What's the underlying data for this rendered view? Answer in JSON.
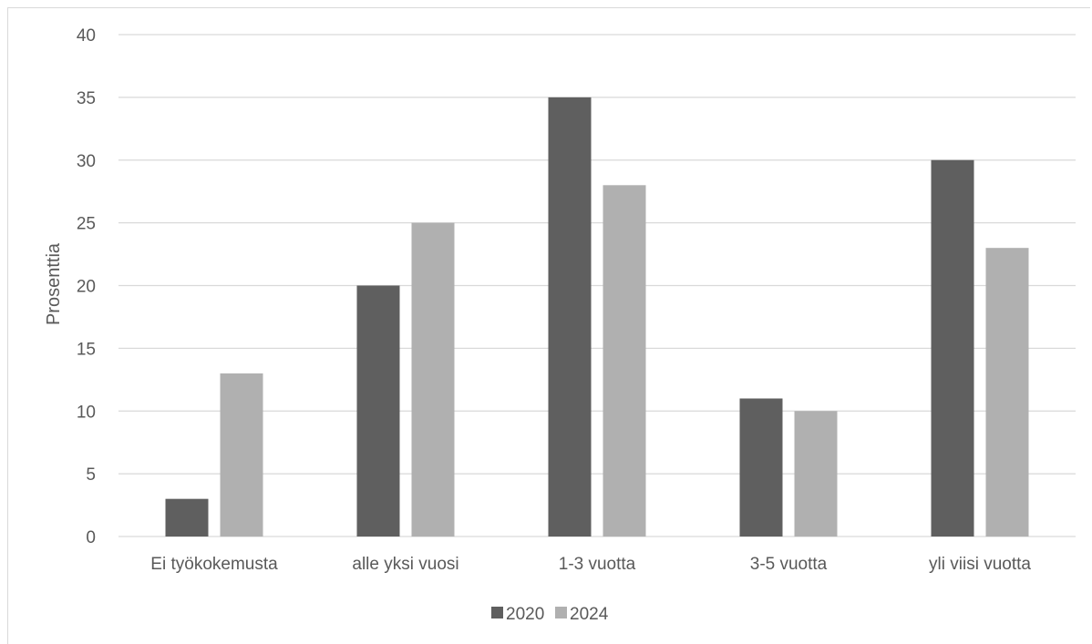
{
  "chart_data": {
    "type": "bar",
    "title": "",
    "xlabel": "",
    "ylabel": "Prosenttia",
    "categories": [
      "Ei työkokemusta",
      "alle yksi vuosi",
      "1-3 vuotta",
      "3-5 vuotta",
      "yli viisi vuotta"
    ],
    "series": [
      {
        "name": "2020",
        "color": "#5f5f5f",
        "values": [
          3,
          20,
          35,
          11,
          30
        ]
      },
      {
        "name": "2024",
        "color": "#b0b0b0",
        "values": [
          13,
          25,
          28,
          10,
          23
        ]
      }
    ],
    "ylim": [
      0,
      40
    ],
    "yticks": [
      "0",
      "5",
      "10",
      "15",
      "20",
      "25",
      "30",
      "35",
      "40"
    ],
    "grid": true,
    "legend": "bottom"
  }
}
